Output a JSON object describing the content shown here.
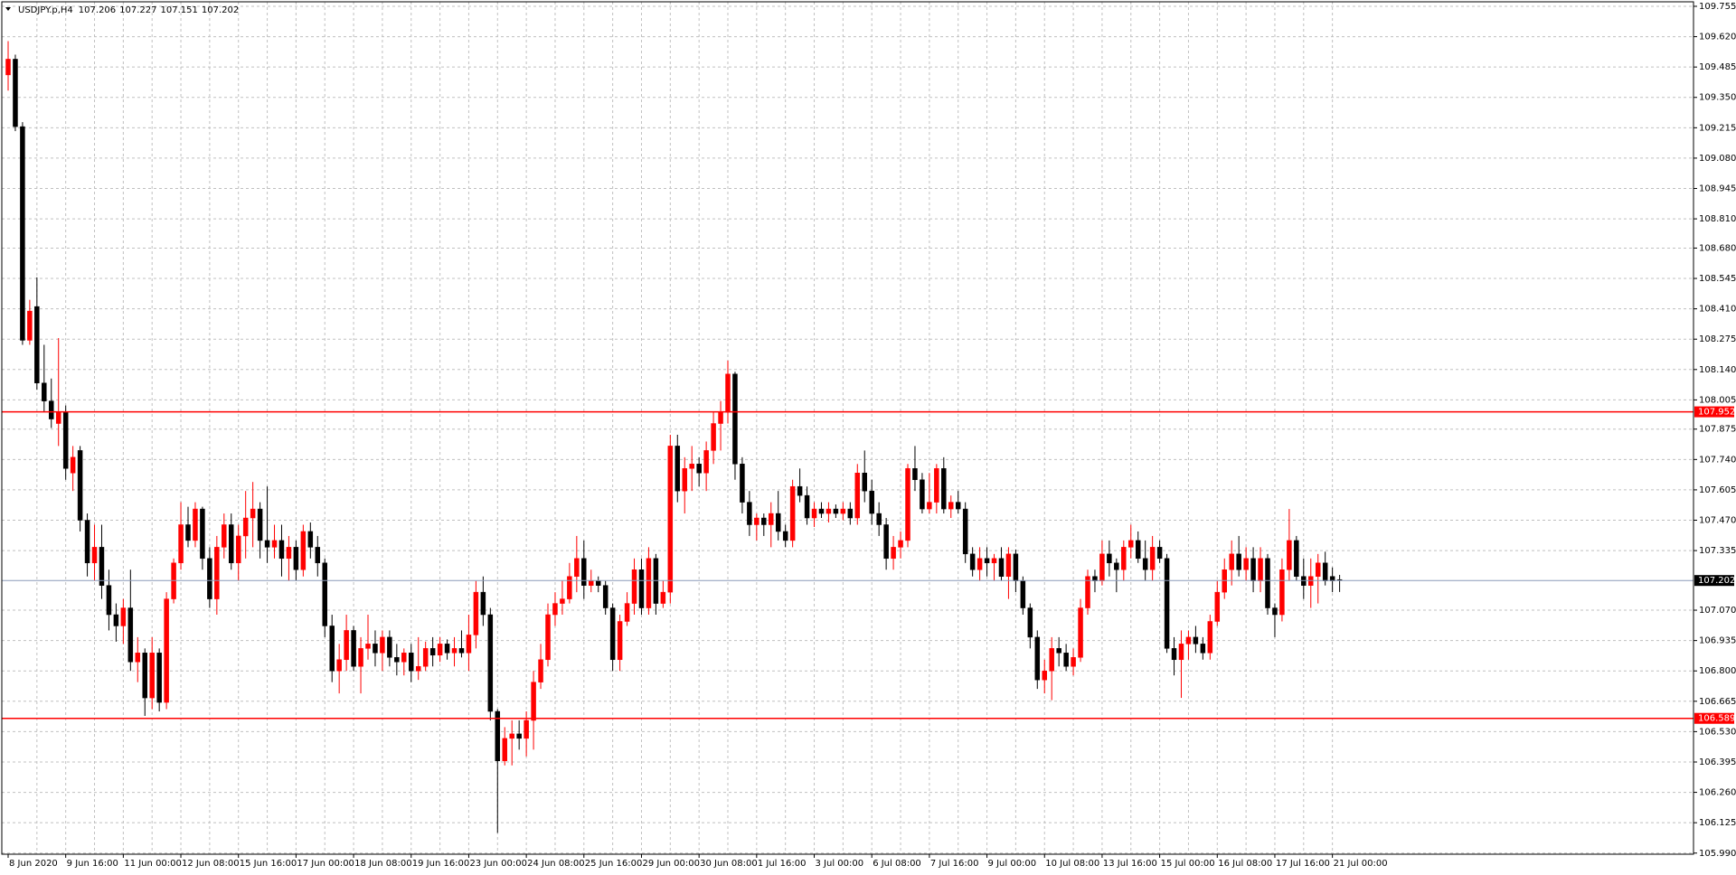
{
  "header": {
    "symbol": "USDJPY.p,H4",
    "ohlc": [
      107.206,
      107.227,
      107.151,
      107.202
    ]
  },
  "chart_data": {
    "type": "candlestick",
    "up_color": "#ff0000",
    "down_color": "#000000",
    "grid": true,
    "ylim": [
      105.985,
      109.775
    ],
    "yticks": [
      109.755,
      {
        "value": 109.62,
        "label": "109.620"
      },
      109.485,
      {
        "value": 109.35,
        "label": "109.350"
      },
      109.215,
      {
        "value": 109.08,
        "label": "109.080"
      },
      108.945,
      {
        "value": 108.81,
        "label": "108.810"
      },
      {
        "value": 108.68,
        "label": "108.680"
      },
      108.545,
      {
        "value": 108.41,
        "label": "108.410"
      },
      108.275,
      {
        "value": 108.14,
        "label": "108.140"
      },
      108.005,
      107.875,
      {
        "value": 107.74,
        "label": "107.740"
      },
      107.605,
      {
        "value": 107.47,
        "label": "107.470"
      },
      107.335,
      {
        "value": 107.07,
        "label": "107.070"
      },
      106.935,
      {
        "value": 106.8,
        "label": "106.800"
      },
      106.665,
      {
        "value": 106.53,
        "label": "106.530"
      },
      106.395,
      {
        "value": 106.26,
        "label": "106.260"
      },
      106.125,
      {
        "value": 105.99,
        "label": "105.990"
      }
    ],
    "price_lines": [
      {
        "value": 107.952,
        "color": "#ff0000",
        "label_color": "#ff0000"
      },
      {
        "value": 106.589,
        "color": "#ff0000",
        "label_color": "#ff0000"
      },
      {
        "value": 107.202,
        "color": "#8c9ab8",
        "label_color": "#000000"
      }
    ],
    "categories": [
      "8 Jun 2020",
      null,
      null,
      null,
      null,
      null,
      null,
      null,
      "9 Jun 16:00",
      null,
      null,
      null,
      null,
      null,
      null,
      null,
      "11 Jun 00:00",
      null,
      null,
      null,
      null,
      null,
      null,
      null,
      "12 Jun 08:00",
      null,
      null,
      null,
      null,
      null,
      null,
      null,
      "15 Jun 16:00",
      null,
      null,
      null,
      null,
      null,
      null,
      null,
      "17 Jun 00:00",
      null,
      null,
      null,
      null,
      null,
      null,
      null,
      "18 Jun 08:00",
      null,
      null,
      null,
      null,
      null,
      null,
      null,
      "19 Jun 16:00",
      null,
      null,
      null,
      null,
      null,
      null,
      null,
      "23 Jun 00:00",
      null,
      null,
      null,
      null,
      null,
      null,
      null,
      "24 Jun 08:00",
      null,
      null,
      null,
      null,
      null,
      null,
      null,
      "25 Jun 16:00",
      null,
      null,
      null,
      null,
      null,
      null,
      null,
      "29 Jun 00:00",
      null,
      null,
      null,
      null,
      null,
      null,
      null,
      "30 Jun 08:00",
      null,
      null,
      null,
      null,
      null,
      null,
      null,
      "1 Jul 16:00",
      null,
      null,
      null,
      null,
      null,
      null,
      null,
      "3 Jul 00:00",
      null,
      null,
      null,
      null,
      null,
      null,
      null,
      "6 Jul 08:00",
      null,
      null,
      null,
      null,
      null,
      null,
      null,
      "7 Jul 16:00",
      null,
      null,
      null,
      null,
      null,
      null,
      null,
      "9 Jul 00:00",
      null,
      null,
      null,
      null,
      null,
      null,
      null,
      "10 Jul 08:00",
      null,
      null,
      null,
      null,
      null,
      null,
      null,
      "13 Jul 16:00",
      null,
      null,
      null,
      null,
      null,
      null,
      null,
      "15 Jul 00:00",
      null,
      null,
      null,
      null,
      null,
      null,
      null,
      "16 Jul 08:00",
      null,
      null,
      null,
      null,
      null,
      null,
      null,
      "17 Jul 16:00",
      null,
      null,
      null,
      null,
      null,
      null,
      null,
      "21 Jul 00:00",
      null
    ],
    "open": [
      109.45,
      109.52,
      109.22,
      108.27,
      108.42,
      108.08,
      108.0,
      107.9,
      107.95,
      107.68,
      107.78,
      107.47,
      107.28,
      107.35,
      107.18,
      107.05,
      107.0,
      107.08,
      106.84,
      106.88,
      106.68,
      106.88,
      106.66,
      107.12,
      107.28,
      107.45,
      107.38,
      107.52,
      107.3,
      107.12,
      107.35,
      107.45,
      107.28,
      107.4,
      107.48,
      107.52,
      107.38,
      107.35,
      107.38,
      107.3,
      107.35,
      107.25,
      107.42,
      107.35,
      107.28,
      107.0,
      106.8,
      106.85,
      106.98,
      106.82,
      106.9,
      106.92,
      106.88,
      106.95,
      106.86,
      106.84,
      106.88,
      106.8,
      106.82,
      106.9,
      106.87,
      106.92,
      106.88,
      106.9,
      106.88,
      106.96,
      107.15,
      107.05,
      106.62,
      106.4,
      106.5,
      106.52,
      106.5,
      106.58,
      106.75,
      106.85,
      107.05,
      107.1,
      107.12,
      107.22,
      107.3,
      107.18,
      107.2,
      107.18,
      107.08,
      106.85,
      107.02,
      107.1,
      107.25,
      107.08,
      107.3,
      107.1,
      107.15,
      107.8,
      107.6,
      107.7,
      107.72,
      107.68,
      107.78,
      107.9,
      107.95,
      108.12,
      107.72,
      107.55,
      107.45,
      107.48,
      107.45,
      107.5,
      107.42,
      107.38,
      107.62,
      107.58,
      107.48,
      107.52,
      107.5,
      107.52,
      107.5,
      107.52,
      107.48,
      107.68,
      107.6,
      107.5,
      107.45,
      107.3,
      107.35,
      107.38,
      107.7,
      107.65,
      107.52,
      107.55,
      107.7,
      107.52,
      107.55,
      107.52,
      107.32,
      107.25,
      107.3,
      107.28,
      107.3,
      107.22,
      107.32,
      107.2,
      107.08,
      106.95,
      106.76,
      106.8,
      106.9,
      106.88,
      106.82,
      106.86,
      107.08,
      107.22,
      107.2,
      107.32,
      107.28,
      107.25,
      107.35,
      107.38,
      107.3,
      107.25,
      107.35,
      107.3,
      106.9,
      106.85,
      106.92,
      106.95,
      106.92,
      106.88,
      107.02,
      107.15,
      107.25,
      107.32,
      107.25,
      107.3,
      107.2,
      107.3,
      107.08,
      107.05,
      107.25,
      107.38,
      107.22,
      107.18,
      107.22,
      107.28,
      107.22,
      107.206
    ],
    "high": [
      109.6,
      109.54,
      109.24,
      108.45,
      108.55,
      108.25,
      108.1,
      108.28,
      107.98,
      107.8,
      107.8,
      107.5,
      107.45,
      107.45,
      107.25,
      107.1,
      107.12,
      107.25,
      106.95,
      106.9,
      106.95,
      106.9,
      107.15,
      107.3,
      107.55,
      107.53,
      107.55,
      107.53,
      107.35,
      107.4,
      107.5,
      107.5,
      107.45,
      107.6,
      107.64,
      107.55,
      107.62,
      107.45,
      107.45,
      107.4,
      107.38,
      107.45,
      107.46,
      107.4,
      107.3,
      107.05,
      106.92,
      107.05,
      107.0,
      106.95,
      107.05,
      106.98,
      106.98,
      106.98,
      106.92,
      106.9,
      106.92,
      106.95,
      106.93,
      106.95,
      106.95,
      106.94,
      106.95,
      106.98,
      107.05,
      107.2,
      107.22,
      107.08,
      106.63,
      106.55,
      106.58,
      106.58,
      106.62,
      106.8,
      106.92,
      107.1,
      107.15,
      107.2,
      107.28,
      107.4,
      107.38,
      107.25,
      107.22,
      107.2,
      107.1,
      107.05,
      107.15,
      107.3,
      107.3,
      107.35,
      107.32,
      107.2,
      107.85,
      107.85,
      107.75,
      107.8,
      107.75,
      107.82,
      107.95,
      108.0,
      108.18,
      108.13,
      107.75,
      107.6,
      107.5,
      107.5,
      107.55,
      107.6,
      107.45,
      107.65,
      107.7,
      107.62,
      107.55,
      107.55,
      107.55,
      107.54,
      107.55,
      107.55,
      107.72,
      107.78,
      107.65,
      107.55,
      107.48,
      107.4,
      107.42,
      107.72,
      107.8,
      107.68,
      107.68,
      107.72,
      107.75,
      107.58,
      107.6,
      107.55,
      107.35,
      107.35,
      107.35,
      107.32,
      107.35,
      107.35,
      107.34,
      107.22,
      107.1,
      106.98,
      106.85,
      106.95,
      106.95,
      106.92,
      106.9,
      107.12,
      107.25,
      107.25,
      107.38,
      107.38,
      107.3,
      107.38,
      107.45,
      107.42,
      107.38,
      107.4,
      107.38,
      107.32,
      106.95,
      106.98,
      106.98,
      107.0,
      106.95,
      107.05,
      107.2,
      107.3,
      107.38,
      107.4,
      107.35,
      107.35,
      107.35,
      107.32,
      107.1,
      107.3,
      107.52,
      107.4,
      107.3,
      107.3,
      107.32,
      107.33,
      107.26,
      107.227
    ],
    "low": [
      109.38,
      109.2,
      108.25,
      108.25,
      108.05,
      107.95,
      107.88,
      107.8,
      107.65,
      107.6,
      107.42,
      107.22,
      107.2,
      107.12,
      106.98,
      106.93,
      106.92,
      106.8,
      106.75,
      106.6,
      106.63,
      106.62,
      106.63,
      107.1,
      107.25,
      107.35,
      107.35,
      107.25,
      107.08,
      107.05,
      107.3,
      107.25,
      107.2,
      107.3,
      107.35,
      107.3,
      107.28,
      107.3,
      107.22,
      107.2,
      107.2,
      107.22,
      107.3,
      107.22,
      106.95,
      106.75,
      106.7,
      106.8,
      106.8,
      106.7,
      106.85,
      106.82,
      106.8,
      106.82,
      106.78,
      106.78,
      106.75,
      106.76,
      106.8,
      106.82,
      106.84,
      106.85,
      106.82,
      106.86,
      106.8,
      106.9,
      107.0,
      106.58,
      106.08,
      106.38,
      106.38,
      106.45,
      106.42,
      106.45,
      106.72,
      106.82,
      107.0,
      107.05,
      107.1,
      107.15,
      107.12,
      107.15,
      107.15,
      107.05,
      106.8,
      106.8,
      107.0,
      107.05,
      107.05,
      107.05,
      107.05,
      107.08,
      107.1,
      107.55,
      107.5,
      107.6,
      107.62,
      107.6,
      107.72,
      107.78,
      107.9,
      107.65,
      107.5,
      107.4,
      107.38,
      107.4,
      107.35,
      107.38,
      107.35,
      107.35,
      107.55,
      107.45,
      107.44,
      107.48,
      107.46,
      107.48,
      107.47,
      107.45,
      107.45,
      107.55,
      107.45,
      107.4,
      107.25,
      107.25,
      107.3,
      107.35,
      107.6,
      107.5,
      107.5,
      107.5,
      107.5,
      107.48,
      107.5,
      107.28,
      107.22,
      107.2,
      107.22,
      107.2,
      107.2,
      107.12,
      107.15,
      107.05,
      106.9,
      106.72,
      106.7,
      106.67,
      106.82,
      106.8,
      106.78,
      106.84,
      107.05,
      107.15,
      107.18,
      107.22,
      107.15,
      107.2,
      107.3,
      107.28,
      107.2,
      107.2,
      107.28,
      106.88,
      106.78,
      106.68,
      106.85,
      106.88,
      106.85,
      106.85,
      107.0,
      107.12,
      107.18,
      107.22,
      107.2,
      107.15,
      107.15,
      107.05,
      106.95,
      107.02,
      107.2,
      107.2,
      107.12,
      107.08,
      107.1,
      107.18,
      107.15,
      107.151
    ],
    "close": [
      109.52,
      109.22,
      108.27,
      108.4,
      108.08,
      108.0,
      107.92,
      107.95,
      107.7,
      107.75,
      107.47,
      107.28,
      107.35,
      107.18,
      107.05,
      107.0,
      107.08,
      106.84,
      106.88,
      106.68,
      106.88,
      106.66,
      107.12,
      107.28,
      107.45,
      107.38,
      107.52,
      107.3,
      107.12,
      107.35,
      107.45,
      107.28,
      107.4,
      107.48,
      107.52,
      107.38,
      107.35,
      107.38,
      107.3,
      107.35,
      107.25,
      107.42,
      107.35,
      107.28,
      107.0,
      106.8,
      106.85,
      106.98,
      106.82,
      106.9,
      106.92,
      106.88,
      106.95,
      106.86,
      106.84,
      106.88,
      106.8,
      106.82,
      106.9,
      106.87,
      106.92,
      106.88,
      106.9,
      106.88,
      106.96,
      107.15,
      107.05,
      106.62,
      106.4,
      106.5,
      106.52,
      106.5,
      106.58,
      106.75,
      106.85,
      107.05,
      107.1,
      107.12,
      107.22,
      107.3,
      107.18,
      107.2,
      107.18,
      107.08,
      106.85,
      107.02,
      107.1,
      107.25,
      107.08,
      107.3,
      107.1,
      107.15,
      107.8,
      107.6,
      107.7,
      107.72,
      107.68,
      107.78,
      107.9,
      107.95,
      108.12,
      107.72,
      107.55,
      107.45,
      107.48,
      107.45,
      107.5,
      107.42,
      107.38,
      107.62,
      107.58,
      107.48,
      107.52,
      107.5,
      107.52,
      107.5,
      107.52,
      107.48,
      107.68,
      107.6,
      107.5,
      107.45,
      107.3,
      107.35,
      107.38,
      107.7,
      107.65,
      107.52,
      107.55,
      107.7,
      107.52,
      107.55,
      107.52,
      107.32,
      107.25,
      107.3,
      107.28,
      107.3,
      107.22,
      107.32,
      107.2,
      107.08,
      106.95,
      106.76,
      106.8,
      106.9,
      106.88,
      106.82,
      106.86,
      107.08,
      107.22,
      107.2,
      107.32,
      107.28,
      107.25,
      107.35,
      107.38,
      107.3,
      107.25,
      107.35,
      107.3,
      106.9,
      106.85,
      106.92,
      106.95,
      106.92,
      106.88,
      107.02,
      107.15,
      107.25,
      107.32,
      107.25,
      107.3,
      107.2,
      107.3,
      107.08,
      107.05,
      107.25,
      107.38,
      107.22,
      107.18,
      107.22,
      107.28,
      107.2,
      107.2,
      107.202
    ]
  }
}
